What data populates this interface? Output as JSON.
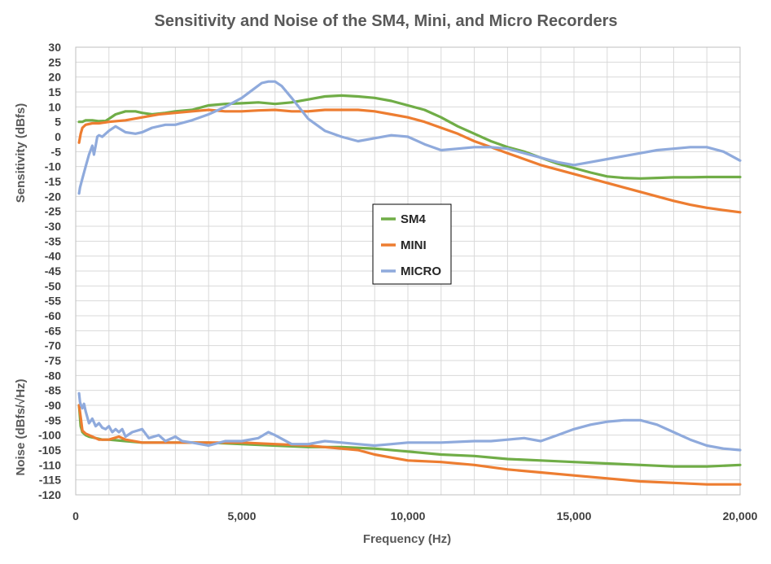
{
  "chart_data": {
    "type": "line",
    "title": "Sensitivity and Noise of the SM4, Mini, and Micro Recorders",
    "xlabel": "Frequency (Hz)",
    "ylabel_top": "Sensitivity (dBfs)",
    "ylabel_bottom": "Noise (dBfs/√Hz)",
    "xlim": [
      0,
      20000
    ],
    "ylim": [
      -120,
      30
    ],
    "x_ticks": [
      0,
      5000,
      10000,
      15000,
      20000
    ],
    "x_tick_labels": [
      "0",
      "5,000",
      "10,000",
      "15,000",
      "20,000"
    ],
    "y_ticks": [
      30,
      25,
      20,
      15,
      10,
      5,
      0,
      -5,
      -10,
      -15,
      -20,
      -25,
      -30,
      -35,
      -40,
      -45,
      -50,
      -55,
      -60,
      -65,
      -70,
      -75,
      -80,
      -85,
      -90,
      -95,
      -100,
      -105,
      -110,
      -115,
      -120
    ],
    "grid": true,
    "legend_position": "center",
    "legend": [
      "SM4",
      "MINI",
      "MICRO"
    ],
    "colors": {
      "SM4": "#70ad47",
      "MINI": "#ed7d31",
      "MICRO": "#8faadc"
    },
    "series": [
      {
        "name": "SM4",
        "curves": [
          {
            "x": [
              100,
              200,
              300,
              500,
              700,
              900,
              1000,
              1200,
              1500,
              1800,
              2000,
              2300,
              2700,
              3000,
              3500,
              4000,
              4500,
              5000,
              5500,
              6000,
              6500,
              7000,
              7500,
              8000,
              8500,
              9000,
              9500,
              10000,
              10500,
              11000,
              11500,
              12000,
              12500,
              13000,
              13500,
              14000,
              14500,
              15000,
              15500,
              16000,
              16500,
              17000,
              17500,
              18000,
              18500,
              19000,
              19500,
              20000
            ],
            "y": [
              5,
              5,
              5.5,
              5.5,
              5.2,
              5.3,
              6,
              7.5,
              8.5,
              8.5,
              8,
              7.5,
              8,
              8.5,
              9,
              10.5,
              11,
              11.2,
              11.5,
              11,
              11.5,
              12.5,
              13.5,
              13.8,
              13.5,
              13,
              12,
              10.5,
              9,
              6.5,
              3.5,
              1,
              -1.5,
              -3.5,
              -5,
              -7,
              -9,
              -10.5,
              -12,
              -13.3,
              -13.8,
              -14,
              -13.8,
              -13.6,
              -13.6,
              -13.5,
              -13.5,
              -13.5
            ]
          },
          {
            "x": [
              100,
              150,
              200,
              300,
              400,
              600,
              800,
              1000,
              1500,
              2000,
              3000,
              4000,
              5000,
              6000,
              7000,
              8000,
              9000,
              10000,
              11000,
              12000,
              13000,
              14000,
              15000,
              16000,
              17000,
              18000,
              19000,
              20000
            ],
            "y": [
              -90,
              -97,
              -99,
              -100,
              -100.5,
              -101,
              -101.5,
              -101.5,
              -102,
              -102.5,
              -102.5,
              -102.5,
              -103,
              -103.5,
              -104,
              -104,
              -104.5,
              -105.5,
              -106.5,
              -107,
              -108,
              -108.5,
              -109,
              -109.5,
              -110,
              -110.5,
              -110.5,
              -110
            ]
          }
        ]
      },
      {
        "name": "MINI",
        "curves": [
          {
            "x": [
              100,
              150,
              200,
              300,
              500,
              700,
              1000,
              1500,
              2000,
              2500,
              3000,
              3500,
              4000,
              4500,
              5000,
              5500,
              6000,
              6500,
              7000,
              7500,
              8000,
              8500,
              9000,
              9500,
              10000,
              10500,
              11000,
              11500,
              12000,
              12500,
              13000,
              13500,
              14000,
              14500,
              15000,
              15500,
              16000,
              16500,
              17000,
              17500,
              18000,
              18500,
              19000,
              19500,
              20000
            ],
            "y": [
              -2,
              1,
              3,
              4,
              4.5,
              4.5,
              5,
              5.5,
              6.5,
              7.5,
              8,
              8.5,
              9,
              8.5,
              8.5,
              8.8,
              9,
              8.5,
              8.5,
              9,
              9,
              9,
              8.5,
              7.5,
              6.5,
              5,
              3,
              1,
              -1.5,
              -3.5,
              -5.5,
              -7.5,
              -9.5,
              -11,
              -12.5,
              -14,
              -15.5,
              -17,
              -18.5,
              -20,
              -21.5,
              -22.8,
              -23.8,
              -24.6,
              -25.3
            ]
          },
          {
            "x": [
              100,
              150,
              200,
              300,
              500,
              700,
              1000,
              1300,
              1500,
              2000,
              3000,
              4000,
              5000,
              6000,
              7000,
              8000,
              8500,
              9000,
              9500,
              10000,
              11000,
              12000,
              13000,
              14000,
              15000,
              16000,
              17000,
              18000,
              19000,
              20000
            ],
            "y": [
              -90,
              -94,
              -98.5,
              -99.5,
              -100.5,
              -101.5,
              -101.5,
              -100.5,
              -101.5,
              -102.5,
              -102.5,
              -102.5,
              -102.5,
              -103,
              -103.5,
              -104.5,
              -105,
              -106.5,
              -107.5,
              -108.5,
              -109,
              -110,
              -111.5,
              -112.5,
              -113.5,
              -114.5,
              -115.5,
              -116,
              -116.5,
              -116.5
            ]
          }
        ]
      },
      {
        "name": "MICRO",
        "curves": [
          {
            "x": [
              100,
              130,
              200,
              300,
              400,
              500,
              550,
              600,
              650,
              700,
              800,
              1000,
              1200,
              1500,
              1800,
              2000,
              2300,
              2700,
              3000,
              3500,
              4000,
              4500,
              5000,
              5300,
              5600,
              5800,
              6000,
              6200,
              6500,
              7000,
              7500,
              8000,
              8500,
              9000,
              9500,
              10000,
              10500,
              11000,
              11500,
              12000,
              12500,
              13000,
              13500,
              14000,
              14500,
              15000,
              15500,
              16000,
              16500,
              17000,
              17500,
              18000,
              18500,
              19000,
              19500,
              20000
            ],
            "y": [
              -19,
              -17,
              -14,
              -10,
              -6,
              -3,
              -6,
              -3,
              0,
              0.5,
              0,
              2,
              3.5,
              1.5,
              1,
              1.5,
              3,
              4,
              4,
              5.5,
              7.5,
              10,
              13,
              15.5,
              18,
              18.5,
              18.5,
              17,
              13,
              6,
              2,
              0,
              -1.5,
              -0.5,
              0.5,
              0,
              -2.5,
              -4.5,
              -4,
              -3.5,
              -3.5,
              -4,
              -5.5,
              -7,
              -8.5,
              -9.5,
              -8.5,
              -7.5,
              -6.5,
              -5.5,
              -4.5,
              -4,
              -3.5,
              -3.5,
              -5,
              -8
            ]
          },
          {
            "x": [
              100,
              130,
              160,
              200,
              250,
              300,
              400,
              500,
              600,
              700,
              800,
              900,
              1000,
              1100,
              1200,
              1300,
              1400,
              1500,
              1700,
              2000,
              2200,
              2500,
              2700,
              3000,
              3200,
              3500,
              4000,
              4500,
              5000,
              5500,
              5800,
              6000,
              6500,
              7000,
              7500,
              8000,
              8500,
              9000,
              9500,
              10000,
              11000,
              12000,
              12500,
              13000,
              13500,
              14000,
              14500,
              15000,
              15500,
              16000,
              16500,
              17000,
              17500,
              18000,
              18500,
              19000,
              19500,
              20000
            ],
            "y": [
              -86,
              -89,
              -90,
              -91,
              -89.5,
              -92,
              -96,
              -94.5,
              -97,
              -96,
              -97.5,
              -98,
              -97,
              -99,
              -98,
              -99,
              -98,
              -100.5,
              -99,
              -98,
              -101,
              -100,
              -102,
              -100.5,
              -102,
              -102.5,
              -103.5,
              -102,
              -102,
              -101,
              -99,
              -100,
              -103,
              -103,
              -102,
              -102.5,
              -103,
              -103.5,
              -103,
              -102.5,
              -102.5,
              -102,
              -102,
              -101.5,
              -101,
              -102,
              -100,
              -98,
              -96.5,
              -95.5,
              -95,
              -95,
              -96.5,
              -99,
              -101.5,
              -103.5,
              -104.5,
              -105
            ]
          }
        ]
      }
    ]
  }
}
